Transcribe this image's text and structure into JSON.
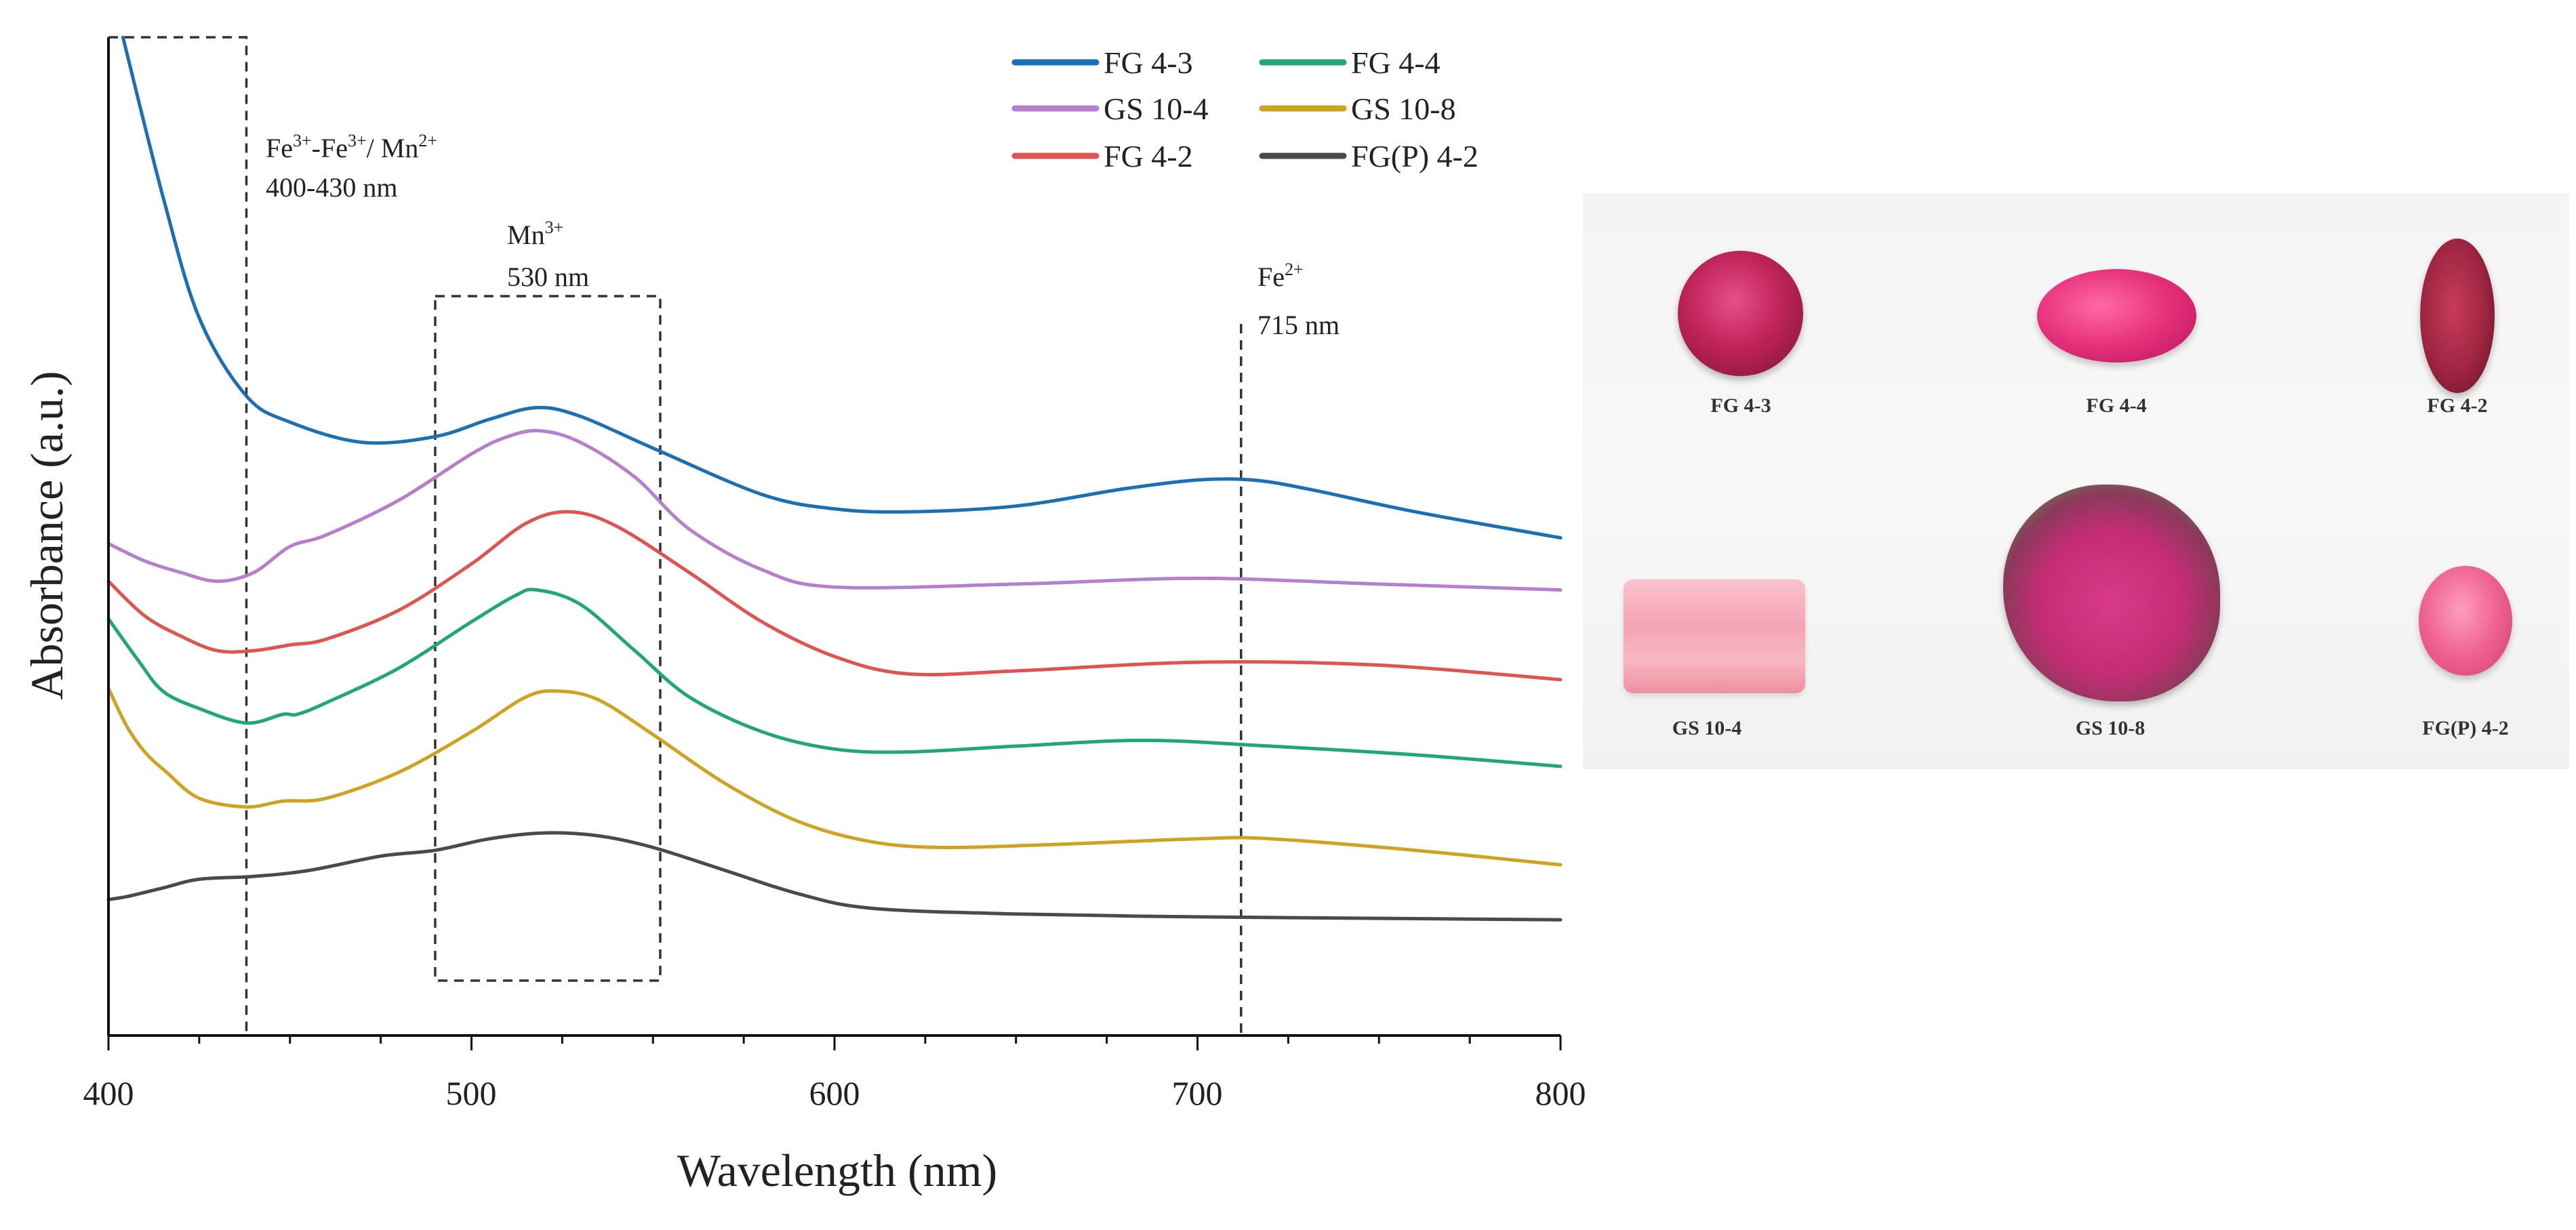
{
  "chart_data": {
    "type": "line",
    "title": "",
    "xlabel": "Wavelength (nm)",
    "ylabel": "Absorbance (a.u.)",
    "xlim": [
      400,
      800
    ],
    "ylim": [
      -1.5,
      33
    ],
    "xticks": [
      400,
      500,
      600,
      700,
      800
    ],
    "xtick_labels": [
      "400",
      "500",
      "600",
      "700",
      "800"
    ],
    "grid": false,
    "legend_position": "top-center",
    "series": [
      {
        "name": "FG 4-3",
        "color": "#1a6fb5",
        "x": [
          404,
          415,
          425,
          438,
          450,
          470,
          490,
          505,
          518,
          530,
          550,
          580,
          600,
          620,
          650,
          680,
          700,
          715,
          730,
          760,
          800
        ],
        "y": [
          33,
          27.5,
          23.3,
          20.6,
          19.7,
          19.0,
          19.2,
          19.8,
          20.2,
          19.9,
          18.8,
          17.2,
          16.7,
          16.6,
          16.8,
          17.4,
          17.7,
          17.7,
          17.4,
          16.6,
          15.7
        ]
      },
      {
        "name": "GS 10-4",
        "color": "#b57fcf",
        "x": [
          400,
          410,
          420,
          430,
          440,
          450,
          460,
          480,
          500,
          510,
          519,
          530,
          545,
          560,
          580,
          600,
          650,
          700,
          750,
          800
        ],
        "y": [
          15.5,
          14.9,
          14.5,
          14.2,
          14.5,
          15.4,
          15.8,
          17.0,
          18.6,
          19.2,
          19.4,
          19.0,
          17.8,
          16.0,
          14.6,
          14.0,
          14.1,
          14.3,
          14.1,
          13.9
        ]
      },
      {
        "name": "FG 4-2",
        "color": "#e0534e",
        "x": [
          400,
          410,
          420,
          430,
          440,
          450,
          460,
          480,
          500,
          515,
          527,
          540,
          560,
          580,
          600,
          620,
          650,
          700,
          750,
          800
        ],
        "y": [
          14.2,
          13.0,
          12.3,
          11.8,
          11.8,
          12.0,
          12.2,
          13.2,
          14.8,
          16.2,
          16.6,
          16.1,
          14.5,
          12.8,
          11.6,
          11.0,
          11.1,
          11.4,
          11.3,
          10.8
        ]
      },
      {
        "name": "FG 4-4",
        "color": "#1fa67a",
        "x": [
          400,
          408,
          415,
          425,
          438,
          448,
          452,
          460,
          480,
          500,
          512,
          518,
          530,
          545,
          560,
          580,
          600,
          620,
          650,
          685,
          720,
          760,
          800
        ],
        "y": [
          12.9,
          11.5,
          10.4,
          9.8,
          9.3,
          9.6,
          9.6,
          10.0,
          11.2,
          12.8,
          13.7,
          13.9,
          13.4,
          11.8,
          10.2,
          9.0,
          8.4,
          8.3,
          8.5,
          8.7,
          8.5,
          8.2,
          7.8
        ]
      },
      {
        "name": "GS 10-8",
        "color": "#cfa21f",
        "x": [
          400,
          405,
          410,
          416,
          425,
          438,
          448,
          460,
          480,
          500,
          515,
          524,
          535,
          550,
          570,
          590,
          610,
          630,
          660,
          700,
          720,
          760,
          800
        ],
        "y": [
          10.5,
          9.2,
          8.3,
          7.6,
          6.7,
          6.4,
          6.6,
          6.7,
          7.6,
          9.0,
          10.2,
          10.4,
          10.1,
          8.9,
          7.2,
          5.9,
          5.2,
          5.0,
          5.1,
          5.3,
          5.3,
          4.9,
          4.4
        ]
      },
      {
        "name": "FG(P) 4-2",
        "color": "#4a4a4a",
        "x": [
          400,
          405,
          415,
          425,
          440,
          455,
          475,
          490,
          505,
          520,
          535,
          550,
          570,
          590,
          610,
          650,
          700,
          750,
          800
        ],
        "y": [
          3.2,
          3.3,
          3.6,
          3.9,
          4.0,
          4.2,
          4.7,
          4.9,
          5.3,
          5.5,
          5.4,
          5.0,
          4.2,
          3.4,
          2.9,
          2.7,
          2.6,
          2.55,
          2.5
        ]
      }
    ],
    "annotations": [
      {
        "id": "fe",
        "text_pre": "Fe",
        "sup1": "3+",
        "text_mid": "-Fe",
        "sup2": "3+",
        "text_mid2": "/ Mn",
        "sup3": "2+",
        "range": "400-430 nm",
        "x_from": 400,
        "x_to": 438
      },
      {
        "id": "mn",
        "ion": "Mn",
        "sup": "3+",
        "wavelength": "530 nm",
        "x_from": 490,
        "x_to": 552
      },
      {
        "id": "fe2",
        "ion": "Fe",
        "sup": "2+",
        "wavelength": "715 nm",
        "x": 712
      }
    ]
  },
  "photo": {
    "samples": [
      {
        "label": "FG 4-3",
        "color": "#c0245a"
      },
      {
        "label": "FG 4-4",
        "color": "#e6307a"
      },
      {
        "label": "FG 4-2",
        "color": "#9e2541"
      },
      {
        "label": "GS 10-4",
        "color": "#f5a3b3"
      },
      {
        "label": "GS 10-8",
        "color": "#c42c75"
      },
      {
        "label": "FG(P) 4-2",
        "color": "#ef6391"
      }
    ]
  }
}
